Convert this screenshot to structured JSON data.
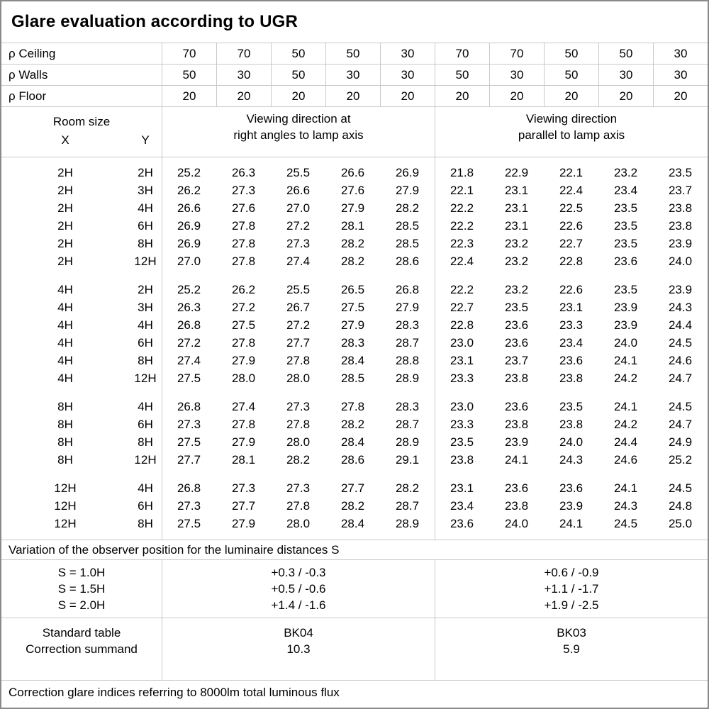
{
  "title": "Glare evaluation according to UGR",
  "reflectance_rows": [
    {
      "label": "ρ Ceiling",
      "values": [
        "70",
        "70",
        "50",
        "50",
        "30",
        "70",
        "70",
        "50",
        "50",
        "30"
      ]
    },
    {
      "label": "ρ Walls",
      "values": [
        "50",
        "30",
        "50",
        "30",
        "30",
        "50",
        "30",
        "50",
        "30",
        "30"
      ]
    },
    {
      "label": "ρ Floor",
      "values": [
        "20",
        "20",
        "20",
        "20",
        "20",
        "20",
        "20",
        "20",
        "20",
        "20"
      ]
    }
  ],
  "header": {
    "room_size": "Room size",
    "x_label": "X",
    "y_label": "Y",
    "section1_line1": "Viewing direction at",
    "section1_line2": "right angles to lamp axis",
    "section2_line1": "Viewing direction",
    "section2_line2": "parallel to lamp axis"
  },
  "data_blocks": [
    {
      "rows": [
        {
          "x": "2H",
          "y": "2H",
          "right_angle": [
            "25.2",
            "26.3",
            "25.5",
            "26.6",
            "26.9"
          ],
          "parallel": [
            "21.8",
            "22.9",
            "22.1",
            "23.2",
            "23.5"
          ]
        },
        {
          "x": "2H",
          "y": "3H",
          "right_angle": [
            "26.2",
            "27.3",
            "26.6",
            "27.6",
            "27.9"
          ],
          "parallel": [
            "22.1",
            "23.1",
            "22.4",
            "23.4",
            "23.7"
          ]
        },
        {
          "x": "2H",
          "y": "4H",
          "right_angle": [
            "26.6",
            "27.6",
            "27.0",
            "27.9",
            "28.2"
          ],
          "parallel": [
            "22.2",
            "23.1",
            "22.5",
            "23.5",
            "23.8"
          ]
        },
        {
          "x": "2H",
          "y": "6H",
          "right_angle": [
            "26.9",
            "27.8",
            "27.2",
            "28.1",
            "28.5"
          ],
          "parallel": [
            "22.2",
            "23.1",
            "22.6",
            "23.5",
            "23.8"
          ]
        },
        {
          "x": "2H",
          "y": "8H",
          "right_angle": [
            "26.9",
            "27.8",
            "27.3",
            "28.2",
            "28.5"
          ],
          "parallel": [
            "22.3",
            "23.2",
            "22.7",
            "23.5",
            "23.9"
          ]
        },
        {
          "x": "2H",
          "y": "12H",
          "right_angle": [
            "27.0",
            "27.8",
            "27.4",
            "28.2",
            "28.6"
          ],
          "parallel": [
            "22.4",
            "23.2",
            "22.8",
            "23.6",
            "24.0"
          ]
        }
      ]
    },
    {
      "rows": [
        {
          "x": "4H",
          "y": "2H",
          "right_angle": [
            "25.2",
            "26.2",
            "25.5",
            "26.5",
            "26.8"
          ],
          "parallel": [
            "22.2",
            "23.2",
            "22.6",
            "23.5",
            "23.9"
          ]
        },
        {
          "x": "4H",
          "y": "3H",
          "right_angle": [
            "26.3",
            "27.2",
            "26.7",
            "27.5",
            "27.9"
          ],
          "parallel": [
            "22.7",
            "23.5",
            "23.1",
            "23.9",
            "24.3"
          ]
        },
        {
          "x": "4H",
          "y": "4H",
          "right_angle": [
            "26.8",
            "27.5",
            "27.2",
            "27.9",
            "28.3"
          ],
          "parallel": [
            "22.8",
            "23.6",
            "23.3",
            "23.9",
            "24.4"
          ]
        },
        {
          "x": "4H",
          "y": "6H",
          "right_angle": [
            "27.2",
            "27.8",
            "27.7",
            "28.3",
            "28.7"
          ],
          "parallel": [
            "23.0",
            "23.6",
            "23.4",
            "24.0",
            "24.5"
          ]
        },
        {
          "x": "4H",
          "y": "8H",
          "right_angle": [
            "27.4",
            "27.9",
            "27.8",
            "28.4",
            "28.8"
          ],
          "parallel": [
            "23.1",
            "23.7",
            "23.6",
            "24.1",
            "24.6"
          ]
        },
        {
          "x": "4H",
          "y": "12H",
          "right_angle": [
            "27.5",
            "28.0",
            "28.0",
            "28.5",
            "28.9"
          ],
          "parallel": [
            "23.3",
            "23.8",
            "23.8",
            "24.2",
            "24.7"
          ]
        }
      ]
    },
    {
      "rows": [
        {
          "x": "8H",
          "y": "4H",
          "right_angle": [
            "26.8",
            "27.4",
            "27.3",
            "27.8",
            "28.3"
          ],
          "parallel": [
            "23.0",
            "23.6",
            "23.5",
            "24.1",
            "24.5"
          ]
        },
        {
          "x": "8H",
          "y": "6H",
          "right_angle": [
            "27.3",
            "27.8",
            "27.8",
            "28.2",
            "28.7"
          ],
          "parallel": [
            "23.3",
            "23.8",
            "23.8",
            "24.2",
            "24.7"
          ]
        },
        {
          "x": "8H",
          "y": "8H",
          "right_angle": [
            "27.5",
            "27.9",
            "28.0",
            "28.4",
            "28.9"
          ],
          "parallel": [
            "23.5",
            "23.9",
            "24.0",
            "24.4",
            "24.9"
          ]
        },
        {
          "x": "8H",
          "y": "12H",
          "right_angle": [
            "27.7",
            "28.1",
            "28.2",
            "28.6",
            "29.1"
          ],
          "parallel": [
            "23.8",
            "24.1",
            "24.3",
            "24.6",
            "25.2"
          ]
        }
      ]
    },
    {
      "rows": [
        {
          "x": "12H",
          "y": "4H",
          "right_angle": [
            "26.8",
            "27.3",
            "27.3",
            "27.7",
            "28.2"
          ],
          "parallel": [
            "23.1",
            "23.6",
            "23.6",
            "24.1",
            "24.5"
          ]
        },
        {
          "x": "12H",
          "y": "6H",
          "right_angle": [
            "27.3",
            "27.7",
            "27.8",
            "28.2",
            "28.7"
          ],
          "parallel": [
            "23.4",
            "23.8",
            "23.9",
            "24.3",
            "24.8"
          ]
        },
        {
          "x": "12H",
          "y": "8H",
          "right_angle": [
            "27.5",
            "27.9",
            "28.0",
            "28.4",
            "28.9"
          ],
          "parallel": [
            "23.6",
            "24.0",
            "24.1",
            "24.5",
            "25.0"
          ]
        }
      ]
    }
  ],
  "variation_note": "Variation of the observer position for the luminaire distances S",
  "variation": {
    "labels": [
      "S = 1.0H",
      "S = 1.5H",
      "S = 2.0H"
    ],
    "right_angle": [
      "+0.3 / -0.3",
      "+0.5 / -0.6",
      "+1.4 / -1.6"
    ],
    "parallel": [
      "+0.6 / -0.9",
      "+1.1 / -1.7",
      "+1.9 / -2.5"
    ]
  },
  "summary": {
    "row1_label": "Standard table",
    "row2_label": "Correction summand",
    "right_angle": {
      "table": "BK04",
      "summand": "10.3"
    },
    "parallel": {
      "table": "BK03",
      "summand": "5.9"
    }
  },
  "footer": "Correction glare indices referring to 8000lm total luminous flux",
  "colors": {
    "grid_line": "#c9c9c9",
    "outer_border": "#8a8a8a",
    "text": "#000000",
    "background": "#ffffff"
  }
}
